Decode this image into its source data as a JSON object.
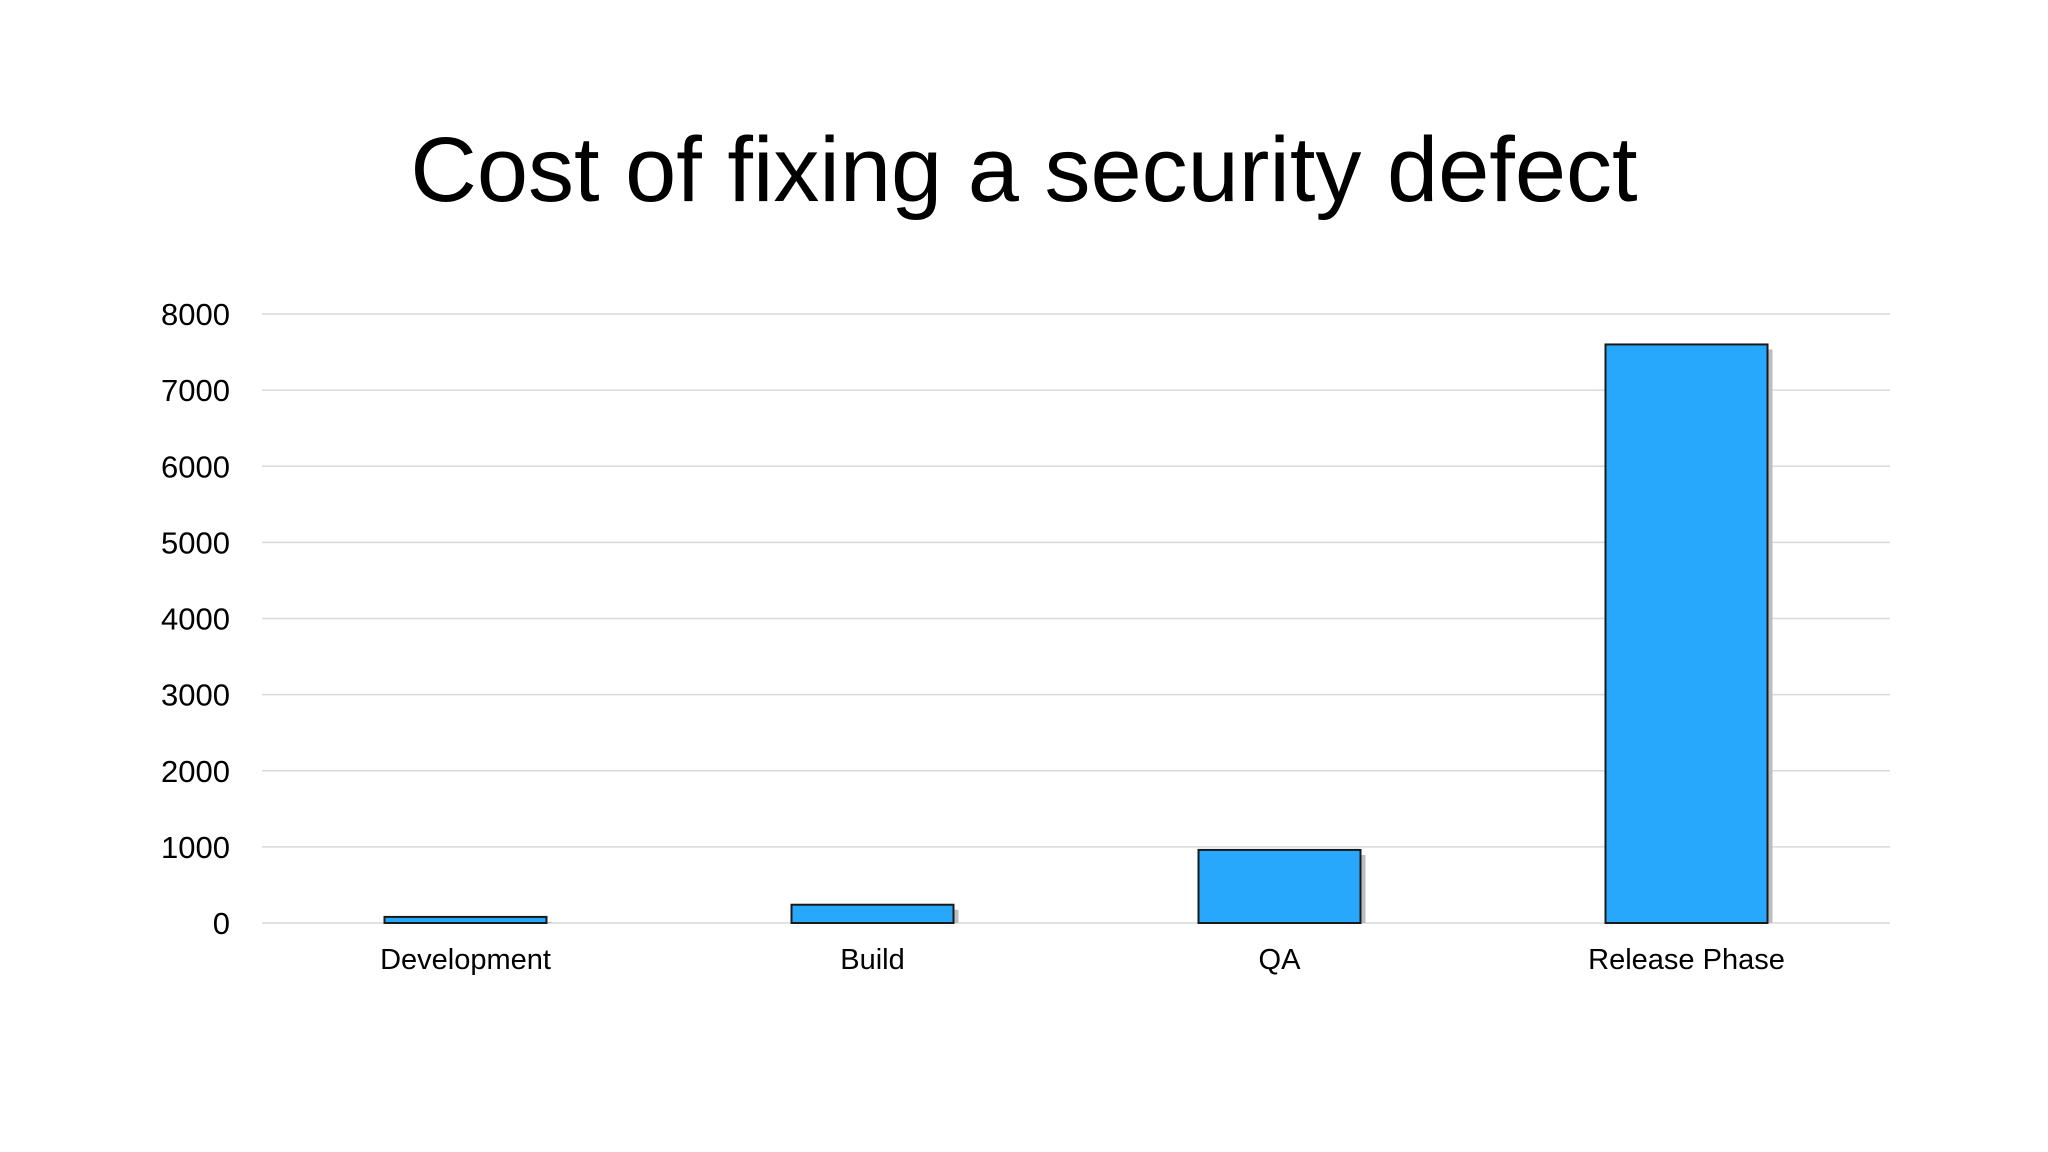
{
  "chart_data": {
    "type": "bar",
    "title": "Cost of fixing a security defect",
    "categories": [
      "Development",
      "Build",
      "QA",
      "Release Phase"
    ],
    "values": [
      80,
      240,
      960,
      7600
    ],
    "ylim": [
      0,
      8000
    ],
    "yticks": [
      0,
      1000,
      2000,
      3000,
      4000,
      5000,
      6000,
      7000,
      8000
    ],
    "ytick_labels": [
      "0",
      "1000",
      "2000",
      "3000",
      "4000",
      "5000",
      "6000",
      "7000",
      "8000"
    ],
    "grid": true,
    "legend": false,
    "xlabel": "",
    "ylabel": "",
    "colors": {
      "bar": "#27a8fd",
      "bar_outline": "#1a1a1a",
      "bar_shadow": "#bdbdbd",
      "grid": "#d9d9d9"
    }
  }
}
